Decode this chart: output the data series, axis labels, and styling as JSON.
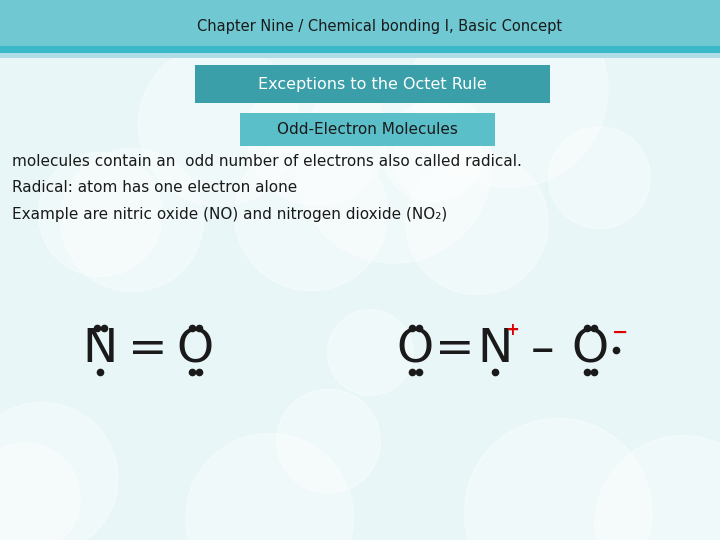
{
  "bg_color": "#e8f6f8",
  "header_bar_color": "#6fc8d2",
  "header_text": "Chapter Nine / Chemical bonding I, Basic Concept",
  "header_text_color": "#1a1a1a",
  "box1_color": "#3a9fa8",
  "box1_text": "Exceptions to the Octet Rule",
  "box1_text_color": "#ffffff",
  "box2_color": "#5bbfc9",
  "box2_text": "Odd-Electron Molecules",
  "box2_text_color": "#1a1a1a",
  "body_lines": [
    "molecules contain an  odd number of electrons also called radical.",
    "Radical: atom has one electron alone",
    "Example are nitric oxide (NO) and nitrogen dioxide (NO₂)"
  ],
  "body_text_color": "#1a1a1a",
  "dot_color": "#1a1a1a",
  "bond_color": "#1a1a1a",
  "plus_color": "#dd0000",
  "minus_color": "#dd0000",
  "atom_color": "#1a1a1a"
}
